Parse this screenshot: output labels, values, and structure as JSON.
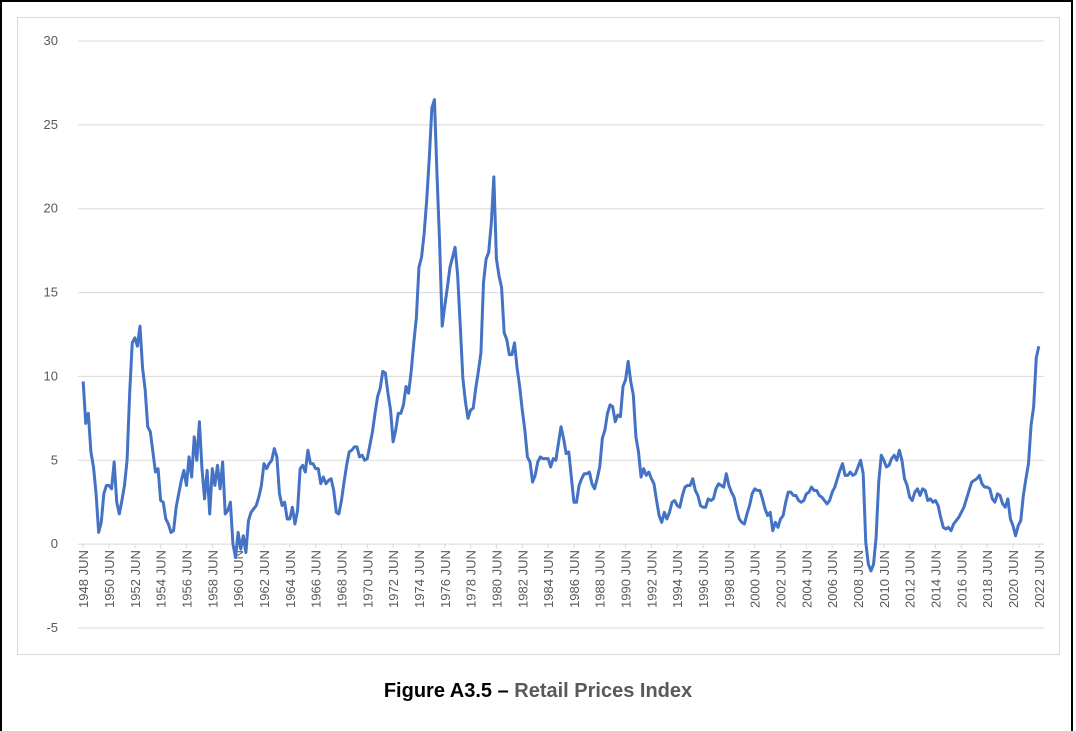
{
  "chart_data": {
    "type": "line",
    "figure_label": "Figure A3.5 –",
    "title": "Retail Prices Index",
    "x": [
      1948.5,
      1948.7,
      1948.9,
      1949.1,
      1949.3,
      1949.5,
      1949.7,
      1949.9,
      1950.1,
      1950.3,
      1950.5,
      1950.7,
      1950.9,
      1951.1,
      1951.3,
      1951.5,
      1951.7,
      1951.9,
      1952.1,
      1952.3,
      1952.5,
      1952.7,
      1952.9,
      1953.1,
      1953.3,
      1953.5,
      1953.7,
      1953.9,
      1954.1,
      1954.3,
      1954.5,
      1954.7,
      1954.9,
      1955.1,
      1955.3,
      1955.5,
      1955.7,
      1955.9,
      1956.1,
      1956.3,
      1956.5,
      1956.7,
      1956.9,
      1957.1,
      1957.3,
      1957.5,
      1957.7,
      1957.9,
      1958.1,
      1958.3,
      1958.5,
      1958.7,
      1958.9,
      1959.1,
      1959.3,
      1959.5,
      1959.7,
      1959.9,
      1960.1,
      1960.3,
      1960.5,
      1960.7,
      1960.9,
      1961.1,
      1961.3,
      1961.5,
      1961.7,
      1961.9,
      1962.1,
      1962.3,
      1962.5,
      1962.7,
      1962.9,
      1963.1,
      1963.3,
      1963.5,
      1963.7,
      1963.9,
      1964.1,
      1964.3,
      1964.5,
      1964.7,
      1964.9,
      1965.1,
      1965.3,
      1965.5,
      1965.7,
      1965.9,
      1966.1,
      1966.3,
      1966.5,
      1966.7,
      1966.9,
      1967.1,
      1967.3,
      1967.5,
      1967.7,
      1967.9,
      1968.1,
      1968.3,
      1968.5,
      1968.7,
      1968.9,
      1969.1,
      1969.3,
      1969.5,
      1969.7,
      1969.9,
      1970.1,
      1970.3,
      1970.5,
      1970.7,
      1970.9,
      1971.1,
      1971.3,
      1971.5,
      1971.7,
      1971.9,
      1972.1,
      1972.3,
      1972.5,
      1972.7,
      1972.9,
      1973.1,
      1973.3,
      1973.5,
      1973.7,
      1973.9,
      1974.1,
      1974.3,
      1974.5,
      1974.7,
      1974.9,
      1975.1,
      1975.3,
      1975.5,
      1975.7,
      1975.9,
      1976.1,
      1976.3,
      1976.5,
      1976.7,
      1976.9,
      1977.1,
      1977.3,
      1977.5,
      1977.7,
      1977.9,
      1978.1,
      1978.3,
      1978.5,
      1978.7,
      1978.9,
      1979.1,
      1979.3,
      1979.5,
      1979.7,
      1979.9,
      1980.1,
      1980.3,
      1980.5,
      1980.7,
      1980.9,
      1981.1,
      1981.3,
      1981.5,
      1981.7,
      1981.9,
      1982.1,
      1982.3,
      1982.5,
      1982.7,
      1982.9,
      1983.1,
      1983.3,
      1983.5,
      1983.7,
      1983.9,
      1984.1,
      1984.3,
      1984.5,
      1984.7,
      1984.9,
      1985.1,
      1985.3,
      1985.5,
      1985.7,
      1985.9,
      1986.1,
      1986.3,
      1986.5,
      1986.7,
      1986.9,
      1987.1,
      1987.3,
      1987.5,
      1987.7,
      1987.9,
      1988.1,
      1988.3,
      1988.5,
      1988.7,
      1988.9,
      1989.1,
      1989.3,
      1989.5,
      1989.7,
      1989.9,
      1990.1,
      1990.3,
      1990.5,
      1990.7,
      1990.9,
      1991.1,
      1991.3,
      1991.5,
      1991.7,
      1991.9,
      1992.1,
      1992.3,
      1992.5,
      1992.7,
      1992.9,
      1993.1,
      1993.3,
      1993.5,
      1993.7,
      1993.9,
      1994.1,
      1994.3,
      1994.5,
      1994.7,
      1994.9,
      1995.1,
      1995.3,
      1995.5,
      1995.7,
      1995.9,
      1996.1,
      1996.3,
      1996.5,
      1996.7,
      1996.9,
      1997.1,
      1997.3,
      1997.5,
      1997.7,
      1997.9,
      1998.1,
      1998.3,
      1998.5,
      1998.7,
      1998.9,
      1999.1,
      1999.3,
      1999.5,
      1999.7,
      1999.9,
      2000.1,
      2000.3,
      2000.5,
      2000.7,
      2000.9,
      2001.1,
      2001.3,
      2001.5,
      2001.7,
      2001.9,
      2002.1,
      2002.3,
      2002.5,
      2002.7,
      2002.9,
      2003.1,
      2003.3,
      2003.5,
      2003.7,
      2003.9,
      2004.1,
      2004.3,
      2004.5,
      2004.7,
      2004.9,
      2005.1,
      2005.3,
      2005.5,
      2005.7,
      2005.9,
      2006.1,
      2006.3,
      2006.5,
      2006.7,
      2006.9,
      2007.1,
      2007.3,
      2007.5,
      2007.7,
      2007.9,
      2008.1,
      2008.3,
      2008.5,
      2008.7,
      2008.9,
      2009.1,
      2009.3,
      2009.5,
      2009.7,
      2009.9,
      2010.1,
      2010.3,
      2010.5,
      2010.7,
      2010.9,
      2011.1,
      2011.3,
      2011.5,
      2011.7,
      2011.9,
      2012.1,
      2012.3,
      2012.5,
      2012.7,
      2012.9,
      2013.1,
      2013.3,
      2013.5,
      2013.7,
      2013.9,
      2014.1,
      2014.3,
      2014.5,
      2014.7,
      2014.9,
      2015.1,
      2015.3,
      2015.5,
      2015.7,
      2015.9,
      2016.1,
      2016.3,
      2016.5,
      2016.7,
      2016.9,
      2017.1,
      2017.3,
      2017.5,
      2017.7,
      2017.9,
      2018.1,
      2018.3,
      2018.5,
      2018.7,
      2018.9,
      2019.1,
      2019.3,
      2019.5,
      2019.7,
      2019.9,
      2020.1,
      2020.3,
      2020.5,
      2020.7,
      2020.9,
      2021.1,
      2021.3,
      2021.5,
      2021.7,
      2021.9,
      2022.1,
      2022.3,
      2022.5
    ],
    "series": [
      {
        "color": "#4472c4",
        "values": [
          9.7,
          7.2,
          7.8,
          5.5,
          4.6,
          3,
          0.7,
          1.3,
          3,
          3.5,
          3.5,
          3.3,
          4.9,
          2.5,
          1.8,
          2.6,
          3.5,
          5,
          9,
          12,
          12.3,
          11.8,
          13,
          10.5,
          9.2,
          7,
          6.7,
          5.5,
          4.3,
          4.5,
          2.6,
          2.5,
          1.5,
          1.2,
          0.7,
          0.8,
          2.2,
          3,
          3.8,
          4.4,
          3.5,
          5.2,
          4,
          6.4,
          5,
          7.3,
          4.5,
          2.7,
          4.4,
          1.8,
          4.5,
          3.5,
          4.7,
          3.3,
          4.9,
          1.8,
          2,
          2.5,
          0,
          -0.8,
          0.7,
          -0.3,
          0.5,
          -0.5,
          1.4,
          1.9,
          2.1,
          2.3,
          2.8,
          3.5,
          4.8,
          4.5,
          4.8,
          5,
          5.7,
          5.2,
          3,
          2.3,
          2.5,
          1.5,
          1.5,
          2.2,
          1.2,
          2,
          4.5,
          4.7,
          4.3,
          5.6,
          4.8,
          4.8,
          4.5,
          4.5,
          3.6,
          4,
          3.6,
          3.8,
          3.9,
          3.2,
          1.9,
          1.8,
          2.6,
          3.7,
          4.7,
          5.5,
          5.6,
          5.8,
          5.8,
          5.2,
          5.3,
          5,
          5.1,
          5.9,
          6.7,
          7.8,
          8.8,
          9.3,
          10.3,
          10.2,
          9,
          8,
          6.1,
          6.8,
          7.8,
          7.8,
          8.3,
          9.4,
          9,
          10.3,
          12,
          13.5,
          16.5,
          17.1,
          18.5,
          20.5,
          23,
          26,
          26.5,
          22,
          18,
          13,
          14.2,
          15.3,
          16.5,
          17.1,
          17.7,
          16,
          13,
          9.9,
          8.5,
          7.5,
          8,
          8.1,
          9.3,
          10.3,
          11.4,
          15.6,
          17,
          17.4,
          19.1,
          21.9,
          17,
          16,
          15.3,
          12.6,
          12.2,
          11.3,
          11.3,
          12,
          10.5,
          9.4,
          8,
          6.8,
          5.2,
          4.9,
          3.7,
          4.1,
          4.9,
          5.2,
          5.1,
          5.1,
          5.1,
          4.6,
          5.1,
          5,
          6,
          7,
          6.3,
          5.4,
          5.5,
          4,
          2.5,
          2.5,
          3.5,
          3.9,
          4.2,
          4.2,
          4.3,
          3.6,
          3.3,
          3.9,
          4.6,
          6.3,
          6.8,
          7.8,
          8.3,
          8.2,
          7.3,
          7.7,
          7.6,
          9.4,
          9.8,
          10.9,
          9.7,
          8.9,
          6.4,
          5.5,
          4,
          4.5,
          4.1,
          4.3,
          3.9,
          3.6,
          2.6,
          1.7,
          1.3,
          1.9,
          1.5,
          1.9,
          2.5,
          2.6,
          2.3,
          2.2,
          2.9,
          3.4,
          3.5,
          3.5,
          3.9,
          3.2,
          2.9,
          2.3,
          2.2,
          2.2,
          2.7,
          2.6,
          2.7,
          3.3,
          3.6,
          3.5,
          3.4,
          4.2,
          3.5,
          3.1,
          2.8,
          2.1,
          1.5,
          1.3,
          1.2,
          1.8,
          2.3,
          3,
          3.3,
          3.2,
          3.2,
          2.7,
          2.1,
          1.7,
          1.9,
          0.8,
          1.3,
          1,
          1.5,
          1.7,
          2.5,
          3.1,
          3.1,
          2.9,
          2.9,
          2.6,
          2.5,
          2.6,
          3,
          3.1,
          3.4,
          3.2,
          3.2,
          2.9,
          2.8,
          2.6,
          2.4,
          2.6,
          3.1,
          3.4,
          3.9,
          4.4,
          4.8,
          4.1,
          4.1,
          4.3,
          4.1,
          4.2,
          4.6,
          5,
          4.2,
          0.1,
          -1.2,
          -1.6,
          -1.2,
          0.4,
          3.7,
          5.3,
          5,
          4.6,
          4.7,
          5.1,
          5.3,
          5,
          5.6,
          5,
          3.9,
          3.5,
          2.8,
          2.6,
          3.1,
          3.3,
          2.9,
          3.3,
          3.2,
          2.6,
          2.7,
          2.5,
          2.6,
          2.3,
          1.6,
          1,
          0.9,
          1,
          0.8,
          1.2,
          1.4,
          1.6,
          1.9,
          2.2,
          2.7,
          3.2,
          3.7,
          3.8,
          3.9,
          4.1,
          3.6,
          3.4,
          3.4,
          3.3,
          2.7,
          2.5,
          3,
          2.9,
          2.4,
          2.2,
          2.7,
          1.5,
          1.1,
          0.5,
          1.1,
          1.4,
          2.9,
          3.9,
          4.8,
          7.1,
          8.2,
          11.1,
          11.8
        ]
      }
    ],
    "xlim": [
      1948.1,
      2022.9
    ],
    "xticks": [
      {
        "value": 1948.5,
        "label": "1948 JUN"
      },
      {
        "value": 1950.5,
        "label": "1950 JUN"
      },
      {
        "value": 1952.5,
        "label": "1952 JUN"
      },
      {
        "value": 1954.5,
        "label": "1954 JUN"
      },
      {
        "value": 1956.5,
        "label": "1956 JUN"
      },
      {
        "value": 1958.5,
        "label": "1958 JUN"
      },
      {
        "value": 1960.5,
        "label": "1960 JUN"
      },
      {
        "value": 1962.5,
        "label": "1962 JUN"
      },
      {
        "value": 1964.5,
        "label": "1964 JUN"
      },
      {
        "value": 1966.5,
        "label": "1966 JUN"
      },
      {
        "value": 1968.5,
        "label": "1968 JUN"
      },
      {
        "value": 1970.5,
        "label": "1970 JUN"
      },
      {
        "value": 1972.5,
        "label": "1972 JUN"
      },
      {
        "value": 1974.5,
        "label": "1974 JUN"
      },
      {
        "value": 1976.5,
        "label": "1976 JUN"
      },
      {
        "value": 1978.5,
        "label": "1978 JUN"
      },
      {
        "value": 1980.5,
        "label": "1980 JUN"
      },
      {
        "value": 1982.5,
        "label": "1982 JUN"
      },
      {
        "value": 1984.5,
        "label": "1984 JUN"
      },
      {
        "value": 1986.5,
        "label": "1986 JUN"
      },
      {
        "value": 1988.5,
        "label": "1988 JUN"
      },
      {
        "value": 1990.5,
        "label": "1990 JUN"
      },
      {
        "value": 1992.5,
        "label": "1992 JUN"
      },
      {
        "value": 1994.5,
        "label": "1994 JUN"
      },
      {
        "value": 1996.5,
        "label": "1996 JUN"
      },
      {
        "value": 1998.5,
        "label": "1998 JUN"
      },
      {
        "value": 2000.5,
        "label": "2000 JUN"
      },
      {
        "value": 2002.5,
        "label": "2002 JUN"
      },
      {
        "value": 2004.5,
        "label": "2004 JUN"
      },
      {
        "value": 2006.5,
        "label": "2006 JUN"
      },
      {
        "value": 2008.5,
        "label": "2008 JUN"
      },
      {
        "value": 2010.5,
        "label": "2010 JUN"
      },
      {
        "value": 2012.5,
        "label": "2012 JUN"
      },
      {
        "value": 2014.5,
        "label": "2014 JUN"
      },
      {
        "value": 2016.5,
        "label": "2016 JUN"
      },
      {
        "value": 2018.5,
        "label": "2018 JUN"
      },
      {
        "value": 2020.5,
        "label": "2020 JUN"
      },
      {
        "value": 2022.5,
        "label": "2022 JUN"
      }
    ],
    "ylim": [
      -5,
      30
    ],
    "yticks": [
      -5,
      0,
      5,
      10,
      15,
      20,
      25,
      30
    ],
    "grid": true
  }
}
